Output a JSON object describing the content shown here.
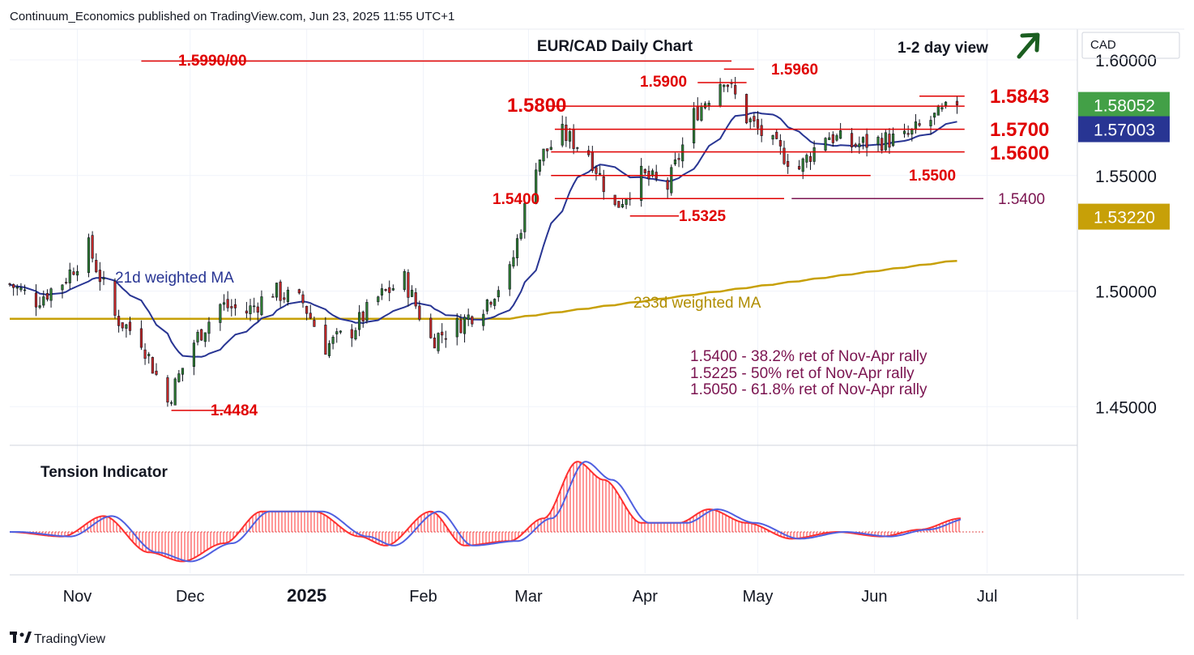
{
  "header": {
    "publisher": "Continuum_Economics published on TradingView.com, Jun 23, 2025 11:55 UTC+1"
  },
  "footer": {
    "brand": "TradingView"
  },
  "colors": {
    "bull": "#2e7d32",
    "bear": "#c62828",
    "wma21": "#283593",
    "wma233": "#c7a008",
    "level": "#e00000",
    "fib": "#7b1450",
    "tension_red": "#ff3030",
    "tension_blue": "#5060e0",
    "arrow": "#1b5e20"
  },
  "chart_data": [
    {
      "type": "candlestick",
      "title": "EUR/CAD Daily Chart",
      "subtitle": "1-2 day view",
      "currency": "CAD",
      "x_axis": {
        "labels": [
          "Nov",
          "Dec",
          "2025",
          "Feb",
          "Mar",
          "Apr",
          "May",
          "Jun",
          "Jul"
        ],
        "range": [
          "2024-10-14",
          "2025-07-25"
        ]
      },
      "y_axis": {
        "range": [
          1.4333,
          1.6133
        ],
        "tick_labels": [
          "1.60000",
          "1.55000",
          "1.50000",
          "1.45000"
        ],
        "ticks": [
          1.6,
          1.55,
          1.5,
          1.45
        ]
      },
      "price_tags": [
        {
          "label": "1.58052",
          "value": 1.58052,
          "color": "#43a047"
        },
        {
          "label": "1.57003",
          "value": 1.57003,
          "color": "#283593"
        },
        {
          "label": "1.53220",
          "value": 1.5322,
          "color": "#c7a008"
        }
      ],
      "lines": [
        {
          "name": "21d weighted MA",
          "color": "#283593"
        },
        {
          "name": "233d weighted MA",
          "color": "#c7a008"
        }
      ],
      "levels": [
        {
          "label": "1.5990/00",
          "value": 1.5995,
          "from": "2024-11-18",
          "to": "2025-04-24"
        },
        {
          "label": "1.5960",
          "value": 1.596,
          "from": "2025-04-22",
          "to": "2025-04-30"
        },
        {
          "label": "1.5900",
          "value": 1.5902,
          "from": "2025-04-15",
          "to": "2025-04-28"
        },
        {
          "label": "1.5843",
          "value": 1.5843,
          "from": "2025-06-13",
          "to": "2025-06-25"
        },
        {
          "label": "1.5800",
          "value": 1.58,
          "from": "2025-03-06",
          "to": "2025-06-25"
        },
        {
          "label": "1.5700",
          "value": 1.57,
          "from": "2025-03-08",
          "to": "2025-06-25"
        },
        {
          "label": "1.5600",
          "value": 1.5602,
          "from": "2025-03-07",
          "to": "2025-06-25"
        },
        {
          "label": "1.5500",
          "value": 1.55,
          "from": "2025-03-07",
          "to": "2025-05-31"
        },
        {
          "label": "1.5400",
          "value": 1.54,
          "from": "2025-03-08",
          "to": "2025-05-08"
        },
        {
          "label": "1.5400",
          "value": 1.54,
          "from": "2025-05-10",
          "to": "2025-06-30"
        },
        {
          "label": "1.5325",
          "value": 1.5325,
          "from": "2025-03-28",
          "to": "2025-04-10"
        },
        {
          "label": "1.4484",
          "value": 1.4484,
          "from": "2024-11-26",
          "to": "2024-12-10"
        }
      ],
      "annotations": [
        "1.5400 - 38.2% ret of Nov-Apr rally",
        "1.5225 - 50% ret of Nov-Apr rally",
        "1.5050 - 61.8% ret of Nov-Apr rally"
      ],
      "series": [
        {
          "name": "EUR/CAD",
          "ohlc_daily_anchor_closes": [
            [
              "2024-10-14",
              1.503
            ],
            [
              "2024-10-21",
              1.496
            ],
            [
              "2024-10-28",
              1.504
            ],
            [
              "2024-11-04",
              1.519
            ],
            [
              "2024-11-11",
              1.489
            ],
            [
              "2024-11-18",
              1.479
            ],
            [
              "2024-11-25",
              1.452
            ],
            [
              "2024-12-02",
              1.478
            ],
            [
              "2024-12-09",
              1.494
            ],
            [
              "2024-12-16",
              1.491
            ],
            [
              "2024-12-23",
              1.5
            ],
            [
              "2024-12-31",
              1.495
            ],
            [
              "2025-01-06",
              1.476
            ],
            [
              "2025-01-13",
              1.483
            ],
            [
              "2025-01-20",
              1.497
            ],
            [
              "2025-01-27",
              1.505
            ],
            [
              "2025-02-03",
              1.479
            ],
            [
              "2025-02-10",
              1.485
            ],
            [
              "2025-02-17",
              1.494
            ],
            [
              "2025-02-24",
              1.508
            ],
            [
              "2025-03-03",
              1.556
            ],
            [
              "2025-03-10",
              1.568
            ],
            [
              "2025-03-17",
              1.56
            ],
            [
              "2025-03-24",
              1.536
            ],
            [
              "2025-03-31",
              1.55
            ],
            [
              "2025-04-07",
              1.545
            ],
            [
              "2025-04-14",
              1.576
            ],
            [
              "2025-04-22",
              1.593
            ],
            [
              "2025-04-28",
              1.575
            ],
            [
              "2025-05-05",
              1.563
            ],
            [
              "2025-05-12",
              1.553
            ],
            [
              "2025-05-19",
              1.568
            ],
            [
              "2025-05-26",
              1.563
            ],
            [
              "2025-06-02",
              1.565
            ],
            [
              "2025-06-09",
              1.566
            ],
            [
              "2025-06-16",
              1.574
            ],
            [
              "2025-06-23",
              1.5805
            ]
          ]
        }
      ]
    },
    {
      "type": "area",
      "title": "Tension Indicator",
      "series": [
        {
          "name": "",
          "x": [
            "2024-10-14",
            "2024-10-28",
            "2024-11-08",
            "2024-11-20",
            "2024-11-29",
            "2024-12-10",
            "2024-12-20",
            "2025-01-03",
            "2025-01-15",
            "2025-01-22",
            "2025-02-03",
            "2025-02-12",
            "2025-02-24",
            "2025-03-05",
            "2025-03-14",
            "2025-03-21",
            "2025-03-31",
            "2025-04-10",
            "2025-04-18",
            "2025-04-28",
            "2025-05-10",
            "2025-05-22",
            "2025-06-03",
            "2025-06-13",
            "2025-06-24"
          ],
          "values": [
            0.0,
            -0.2,
            0.7,
            -0.9,
            -1.3,
            -0.5,
            0.9,
            0.9,
            -0.2,
            -0.6,
            0.9,
            -0.6,
            -0.4,
            0.6,
            3.1,
            2.3,
            0.4,
            0.4,
            1.0,
            0.4,
            -0.3,
            0.0,
            -0.2,
            0.1,
            0.6
          ]
        }
      ]
    }
  ]
}
